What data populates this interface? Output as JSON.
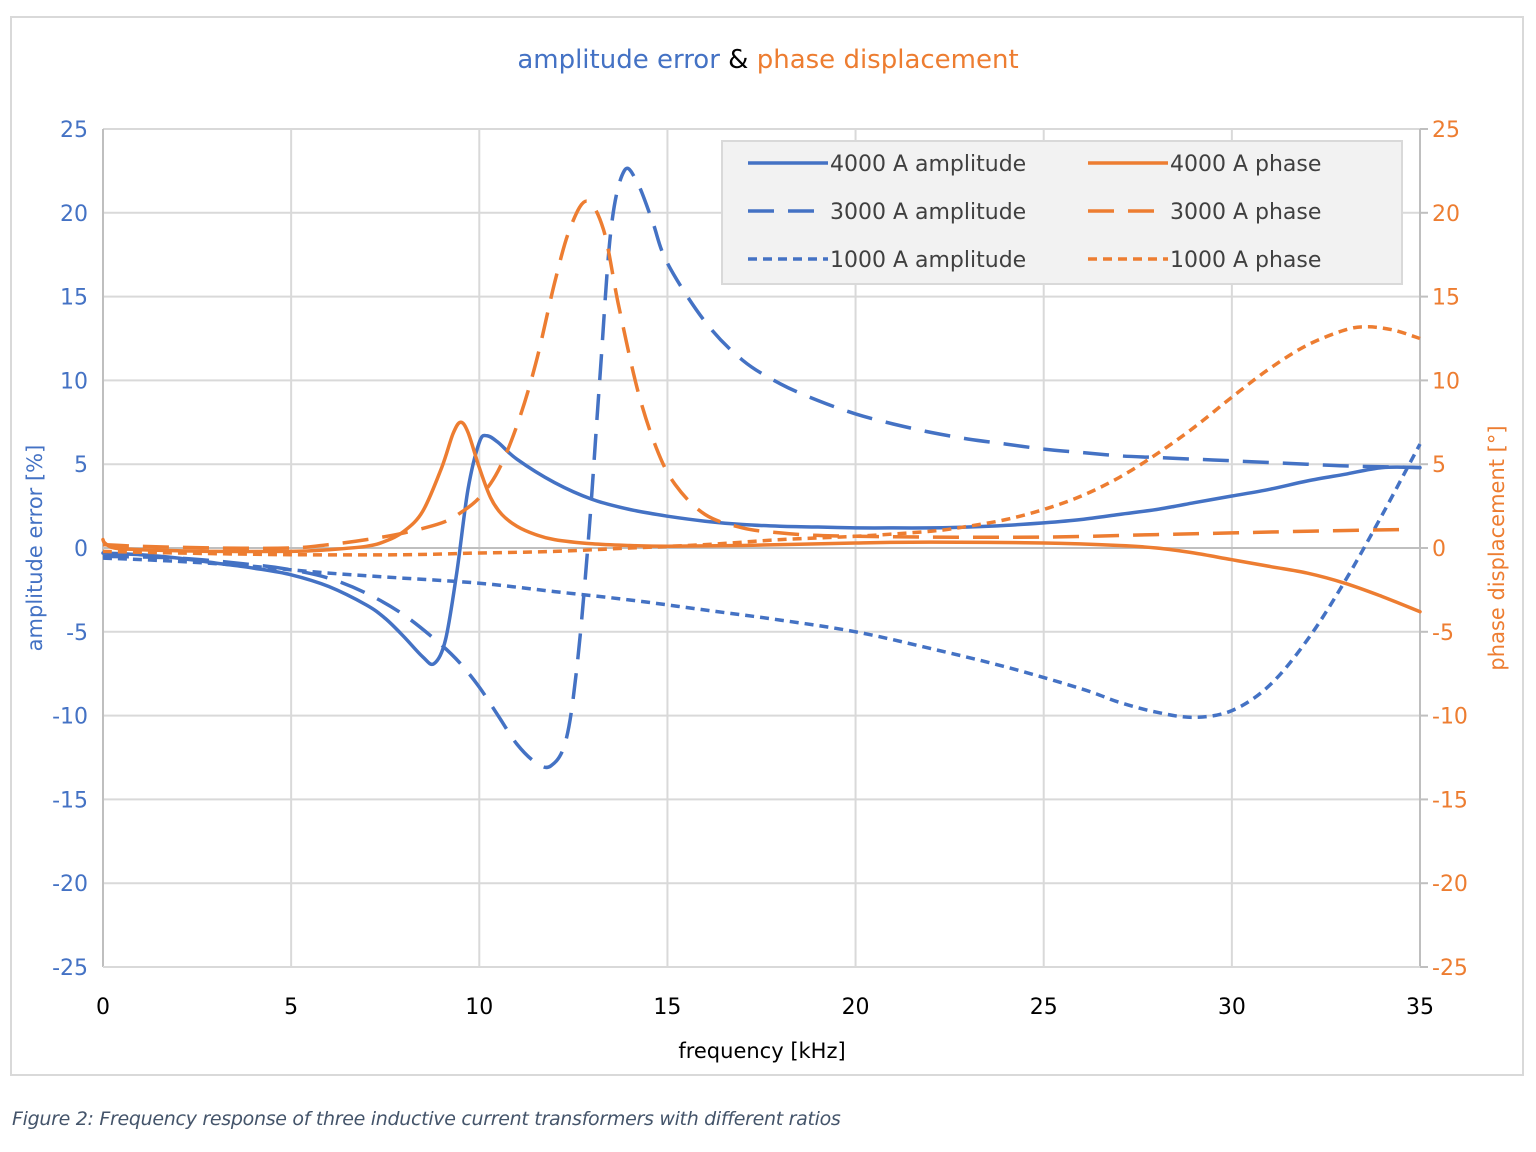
{
  "chart_data": {
    "type": "line",
    "title": {
      "parts": [
        {
          "text": "amplitude error",
          "color": "#4472c4"
        },
        {
          "text": " & ",
          "color": "#000000"
        },
        {
          "text": "phase displacement",
          "color": "#ed7d31"
        }
      ]
    },
    "xlabel": "frequency [kHz]",
    "ylabel": "amplitude error [%]",
    "y2label": "phase displacement [°]",
    "xlim": [
      0,
      35
    ],
    "ylim": [
      -25,
      25
    ],
    "y2lim": [
      -25,
      25
    ],
    "xticks": [
      0,
      5,
      10,
      15,
      20,
      25,
      30,
      35
    ],
    "yticks": [
      25,
      20,
      15,
      10,
      5,
      0,
      -5,
      -10,
      -15,
      -20,
      -25
    ],
    "y2ticks": [
      25,
      20,
      15,
      10,
      5,
      0,
      -5,
      -10,
      -15,
      -20,
      -25
    ],
    "grid": true,
    "legend_position": "upper right (inside)",
    "colors": {
      "amplitude": "#4472c4",
      "phase": "#ed7d31",
      "grid": "#d9d9d9",
      "axis": "#bfbfbf",
      "legend_bg": "#f2f2f2"
    },
    "series": [
      {
        "name": "4000 A amplitude",
        "axis": "left",
        "color": "#4472c4",
        "dash": "solid",
        "x": [
          0,
          1,
          2,
          3,
          4,
          5,
          6,
          7,
          7.5,
          8,
          8.5,
          8.8,
          9.1,
          9.4,
          9.7,
          10.0,
          10.2,
          10.5,
          11,
          12,
          13,
          14,
          15,
          16,
          17,
          18,
          19,
          20,
          21,
          22,
          23,
          24,
          25,
          26,
          27,
          28,
          29,
          30,
          31,
          32,
          33,
          34,
          35
        ],
        "y": [
          -0.3,
          -0.4,
          -0.6,
          -0.9,
          -1.2,
          -1.6,
          -2.3,
          -3.4,
          -4.2,
          -5.3,
          -6.5,
          -6.9,
          -5.5,
          -1.5,
          3.5,
          6.3,
          6.7,
          6.3,
          5.3,
          3.9,
          2.9,
          2.3,
          1.9,
          1.6,
          1.4,
          1.3,
          1.25,
          1.2,
          1.2,
          1.2,
          1.25,
          1.35,
          1.5,
          1.7,
          2.0,
          2.3,
          2.7,
          3.1,
          3.5,
          4.0,
          4.4,
          4.8,
          4.8
        ]
      },
      {
        "name": "3000 A amplitude",
        "axis": "left",
        "color": "#4472c4",
        "dash": "long",
        "x": [
          0,
          2,
          4,
          5,
          6,
          7,
          8,
          9,
          9.5,
          10,
          10.5,
          11,
          11.5,
          11.9,
          12.3,
          12.6,
          12.9,
          13.2,
          13.5,
          13.85,
          14.2,
          14.6,
          15,
          16,
          17,
          18,
          19,
          20,
          21,
          22,
          23,
          24,
          25,
          26,
          27,
          28,
          29,
          30,
          31,
          32,
          33,
          34,
          35
        ],
        "y": [
          -0.5,
          -0.6,
          -1.0,
          -1.3,
          -1.8,
          -2.7,
          -4.0,
          -5.8,
          -6.9,
          -8.3,
          -10.0,
          -11.7,
          -12.8,
          -13.0,
          -11.5,
          -7.0,
          0.5,
          10.0,
          19.0,
          22.5,
          21.8,
          19.5,
          17.0,
          13.5,
          11.2,
          9.8,
          8.8,
          8.0,
          7.4,
          6.9,
          6.5,
          6.2,
          5.9,
          5.7,
          5.5,
          5.4,
          5.3,
          5.2,
          5.1,
          5.0,
          4.9,
          4.85,
          4.8
        ]
      },
      {
        "name": "1000 A amplitude",
        "axis": "left",
        "color": "#4472c4",
        "dash": "short",
        "x": [
          0,
          2,
          4,
          6,
          8,
          10,
          12,
          14,
          16,
          18,
          20,
          22,
          24,
          26,
          27,
          28,
          29,
          30,
          31,
          32,
          33,
          34,
          35
        ],
        "y": [
          -0.6,
          -0.8,
          -1.1,
          -1.5,
          -1.8,
          -2.1,
          -2.6,
          -3.1,
          -3.7,
          -4.3,
          -5.0,
          -6.0,
          -7.1,
          -8.4,
          -9.2,
          -9.8,
          -10.1,
          -9.7,
          -8.2,
          -5.5,
          -2.0,
          2.0,
          6.2
        ]
      },
      {
        "name": "4000 A phase",
        "axis": "right",
        "color": "#ed7d31",
        "dash": "solid",
        "x": [
          0,
          0.05,
          0.3,
          1,
          3,
          5,
          6,
          7,
          7.5,
          8,
          8.5,
          9.0,
          9.3,
          9.5,
          9.7,
          10.0,
          10.3,
          10.6,
          11,
          11.5,
          12,
          13,
          14,
          15,
          17,
          20,
          22,
          25,
          27,
          28,
          29,
          30,
          31,
          32,
          33,
          34,
          35
        ],
        "y": [
          0.5,
          0.3,
          0.0,
          -0.1,
          -0.2,
          -0.2,
          -0.1,
          0.1,
          0.4,
          1.0,
          2.2,
          4.8,
          6.8,
          7.5,
          6.9,
          4.8,
          3.0,
          2.0,
          1.3,
          0.8,
          0.5,
          0.25,
          0.15,
          0.1,
          0.15,
          0.3,
          0.35,
          0.3,
          0.15,
          0.0,
          -0.3,
          -0.7,
          -1.1,
          -1.5,
          -2.1,
          -2.9,
          -3.8
        ]
      },
      {
        "name": "3000 A phase",
        "axis": "right",
        "color": "#ed7d31",
        "dash": "long",
        "x": [
          0,
          1,
          3,
          5,
          6,
          7,
          8,
          9,
          9.5,
          10,
          10.5,
          11,
          11.5,
          12,
          12.4,
          12.85,
          13.3,
          13.7,
          14.2,
          14.7,
          15.2,
          16,
          17,
          18,
          19,
          20,
          22,
          25,
          28,
          30,
          32,
          34.5
        ],
        "y": [
          0.2,
          0.1,
          0.0,
          0.0,
          0.2,
          0.5,
          0.9,
          1.5,
          2.1,
          3.0,
          4.6,
          7.3,
          11.0,
          15.8,
          19.0,
          20.7,
          19.0,
          14.5,
          9.5,
          6.0,
          3.8,
          2.0,
          1.2,
          0.9,
          0.75,
          0.7,
          0.65,
          0.65,
          0.8,
          0.9,
          1.0,
          1.1
        ]
      },
      {
        "name": "1000 A phase",
        "axis": "right",
        "color": "#ed7d31",
        "dash": "short",
        "x": [
          0,
          2,
          5,
          8,
          10,
          12,
          14,
          16,
          18,
          20,
          22,
          23,
          24,
          25,
          26,
          27,
          28,
          29,
          30,
          31,
          32,
          33,
          33.6,
          34.3,
          35
        ],
        "y": [
          -0.2,
          -0.3,
          -0.4,
          -0.4,
          -0.3,
          -0.2,
          0.0,
          0.2,
          0.5,
          0.7,
          1.0,
          1.3,
          1.7,
          2.3,
          3.1,
          4.2,
          5.6,
          7.2,
          9.0,
          10.7,
          12.1,
          13.0,
          13.2,
          13.0,
          12.5
        ]
      }
    ]
  },
  "legend": {
    "items": [
      {
        "label": "4000 A amplitude",
        "color": "#4472c4",
        "dash": "solid"
      },
      {
        "label": "4000 A phase",
        "color": "#ed7d31",
        "dash": "solid"
      },
      {
        "label": "3000 A amplitude",
        "color": "#4472c4",
        "dash": "long"
      },
      {
        "label": "3000 A phase",
        "color": "#ed7d31",
        "dash": "long"
      },
      {
        "label": "1000 A amplitude",
        "color": "#4472c4",
        "dash": "short"
      },
      {
        "label": "1000 A phase",
        "color": "#ed7d31",
        "dash": "short"
      }
    ]
  },
  "caption": "Figure 2: Frequency response of three inductive current transformers with different ratios"
}
